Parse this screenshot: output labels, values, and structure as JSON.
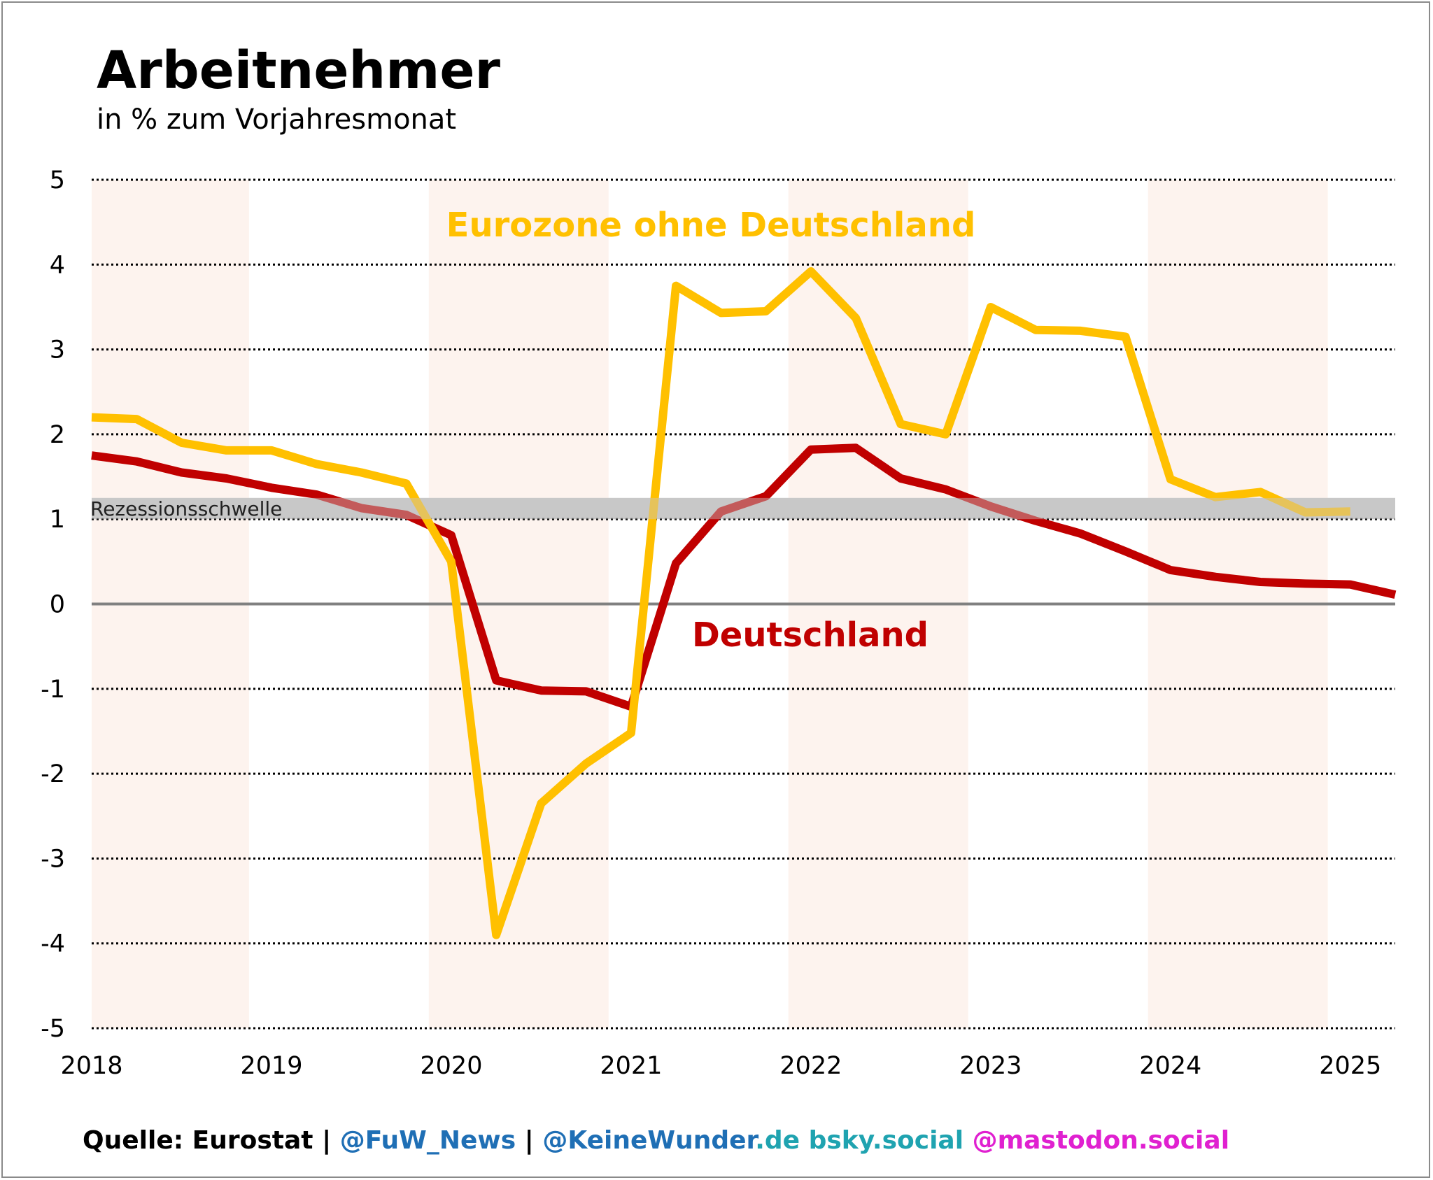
{
  "colors": {
    "eurozone": "#FFC000",
    "deutschland": "#C00000",
    "shade": "#FDF3EE",
    "recession_band": "#C8C8C8",
    "grid": "#000000",
    "zero": "#808080",
    "fuw": "#1F6FB5",
    "keinewunder": "#1F6FB5",
    "bsky": "#1FA3B0",
    "mastodon": "#E020D0"
  },
  "header": {
    "title": "Arbeitnehmer",
    "subtitle": "in % zum Vorjahresmonat"
  },
  "footer": {
    "source": "Quelle: Eurostat",
    "sep1": " | ",
    "fuw": "@FuW_News",
    "sep2": " | ",
    "keinewunder": "@KeineWunder",
    "de": ".de",
    "bsky": " bsky.social",
    "mastodon": " @mastodon.social"
  },
  "chart_data": {
    "type": "line",
    "title": "Arbeitnehmer",
    "subtitle": "in % zum Vorjahresmonat",
    "xlabel": "",
    "ylabel": "",
    "xlim": [
      2018.0,
      2025.25
    ],
    "ylim": [
      -5,
      5
    ],
    "yticks": [
      5,
      4,
      3,
      2,
      1,
      0,
      -1,
      -2,
      -3,
      -4,
      -5
    ],
    "ytick_labels": [
      "5",
      "4",
      "3",
      "2",
      "1",
      "0",
      "-1",
      "-2",
      "-3",
      "-4",
      "-5"
    ],
    "xticks": [
      2018,
      2019,
      2020,
      2021,
      2022,
      2023,
      2024,
      2025
    ],
    "xtick_labels": [
      "2018",
      "2019",
      "2020",
      "2021",
      "2022",
      "2023",
      "2024",
      "2025"
    ],
    "grid": "horizontal dotted",
    "shaded_periods": [
      [
        2018.0,
        2018.875
      ],
      [
        2019.875,
        2020.875
      ],
      [
        2021.875,
        2022.875
      ],
      [
        2023.875,
        2024.875
      ]
    ],
    "recession_threshold": {
      "label": "Rezessionsschwelle",
      "from": 1.0,
      "to": 1.25
    },
    "series": [
      {
        "name": "Eurozone ohne Deutschland",
        "x": [
          2018.0,
          2018.25,
          2018.5,
          2018.75,
          2019.0,
          2019.25,
          2019.5,
          2019.75,
          2020.0,
          2020.25,
          2020.5,
          2020.75,
          2021.0,
          2021.25,
          2021.5,
          2021.75,
          2022.0,
          2022.25,
          2022.5,
          2022.75,
          2023.0,
          2023.25,
          2023.5,
          2023.75,
          2024.0,
          2024.25,
          2024.5,
          2024.75,
          2025.0
        ],
        "values": [
          2.2,
          2.18,
          1.9,
          1.81,
          1.81,
          1.65,
          1.55,
          1.42,
          0.5,
          -3.9,
          -2.35,
          -1.88,
          -1.52,
          3.75,
          3.43,
          3.45,
          3.92,
          3.37,
          2.12,
          2.0,
          3.5,
          3.23,
          3.22,
          3.15,
          1.47,
          1.26,
          1.32,
          1.08,
          1.09
        ]
      },
      {
        "name": "Deutschland",
        "x": [
          2018.0,
          2018.25,
          2018.5,
          2018.75,
          2019.0,
          2019.25,
          2019.5,
          2019.75,
          2020.0,
          2020.25,
          2020.5,
          2020.75,
          2021.0,
          2021.25,
          2021.5,
          2021.75,
          2022.0,
          2022.25,
          2022.5,
          2022.75,
          2023.0,
          2023.25,
          2023.5,
          2023.75,
          2024.0,
          2024.25,
          2024.5,
          2024.75,
          2025.0,
          2025.25
        ],
        "values": [
          1.75,
          1.68,
          1.55,
          1.48,
          1.37,
          1.29,
          1.13,
          1.05,
          0.81,
          -0.9,
          -1.02,
          -1.03,
          -1.21,
          0.48,
          1.09,
          1.27,
          1.82,
          1.84,
          1.48,
          1.35,
          1.15,
          0.98,
          0.83,
          0.62,
          0.4,
          0.32,
          0.26,
          0.24,
          0.23,
          0.11
        ]
      }
    ],
    "annotations": [
      {
        "text": "Eurozone ohne Deutschland",
        "series": 0
      },
      {
        "text": "Deutschland",
        "series": 1
      },
      {
        "text": "Rezessionsschwelle"
      }
    ]
  }
}
